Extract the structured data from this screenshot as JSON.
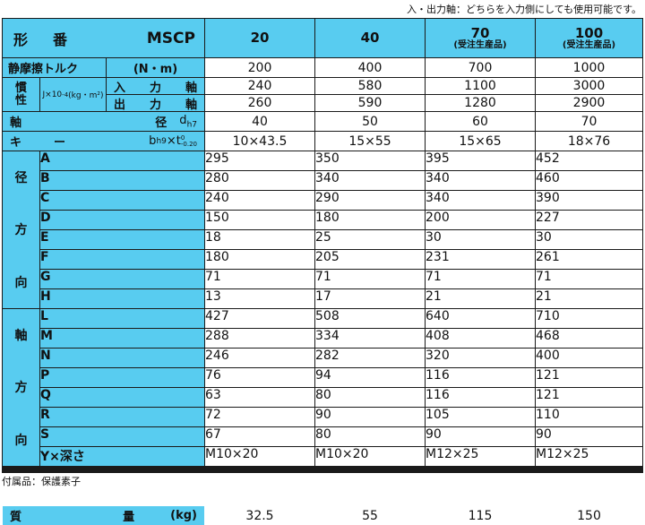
{
  "top_note": "入・出力軸：どちらを入力側にしても使用可能です。",
  "footer_note": "付属品：保護素子",
  "header": {
    "model_label_1": "形",
    "model_label_2": "番",
    "model_code": "MSCP",
    "sizes": [
      {
        "num": "20",
        "sub": ""
      },
      {
        "num": "40",
        "sub": ""
      },
      {
        "num": "70",
        "sub": "(受注生産品)"
      },
      {
        "num": "100",
        "sub": "(受注生産品)"
      }
    ]
  },
  "torque": {
    "label": "静摩擦トルク",
    "unit": "(N・m)",
    "values": [
      "200",
      "400",
      "700",
      "1000"
    ]
  },
  "inertia": {
    "label": "慣性",
    "unit_prefix": "J×10",
    "unit_exp": "-4",
    "unit_suffix": "(kg・m²)",
    "input": {
      "c1": "入",
      "c2": "力",
      "c3": "軸",
      "values": [
        "240",
        "580",
        "1100",
        "3000"
      ]
    },
    "output": {
      "c1": "出",
      "c2": "力",
      "c3": "軸",
      "values": [
        "260",
        "590",
        "1280",
        "2900"
      ]
    }
  },
  "shaft": {
    "c1": "軸",
    "c2": "径",
    "symbol": "d",
    "tol": "h7",
    "values": [
      "40",
      "50",
      "60",
      "70"
    ]
  },
  "key": {
    "c1": "キ",
    "c2": "ー",
    "b": "b",
    "b_tol": "h9",
    "times": "×t",
    "t_tol_upper": "0",
    "t_tol_lower": "-0.20",
    "values": [
      "10×43.5",
      "15×55",
      "15×65",
      "18×76"
    ]
  },
  "radial": {
    "label": [
      "径",
      "方",
      "向"
    ],
    "rows": [
      {
        "dim": "A",
        "values": [
          "295",
          "350",
          "395",
          "452"
        ]
      },
      {
        "dim": "B",
        "values": [
          "280",
          "340",
          "340",
          "460"
        ]
      },
      {
        "dim": "C",
        "values": [
          "240",
          "290",
          "340",
          "390"
        ]
      },
      {
        "dim": "D",
        "values": [
          "150",
          "180",
          "200",
          "227"
        ]
      },
      {
        "dim": "E",
        "values": [
          "18",
          "25",
          "30",
          "30"
        ]
      },
      {
        "dim": "F",
        "values": [
          "180",
          "205",
          "231",
          "261"
        ]
      },
      {
        "dim": "G",
        "values": [
          "71",
          "71",
          "71",
          "71"
        ]
      },
      {
        "dim": "H",
        "values": [
          "13",
          "17",
          "21",
          "21"
        ]
      }
    ]
  },
  "axial": {
    "label": [
      "軸",
      "方",
      "向"
    ],
    "rows": [
      {
        "dim": "L",
        "values": [
          "427",
          "508",
          "640",
          "710"
        ]
      },
      {
        "dim": "M",
        "values": [
          "288",
          "334",
          "408",
          "468"
        ]
      },
      {
        "dim": "N",
        "values": [
          "246",
          "282",
          "320",
          "400"
        ]
      },
      {
        "dim": "P",
        "values": [
          "76",
          "94",
          "116",
          "121"
        ]
      },
      {
        "dim": "Q",
        "values": [
          "63",
          "80",
          "116",
          "121"
        ]
      },
      {
        "dim": "R",
        "values": [
          "72",
          "90",
          "105",
          "110"
        ]
      },
      {
        "dim": "S",
        "values": [
          "67",
          "80",
          "90",
          "90"
        ]
      },
      {
        "dim": "Y×深さ",
        "values": [
          "M10×20",
          "M10×20",
          "M12×25",
          "M12×25"
        ]
      }
    ]
  },
  "mass": {
    "c1": "質",
    "c2": "量",
    "unit": "(kg)",
    "values": [
      "32.5",
      "55",
      "115",
      "150"
    ]
  }
}
